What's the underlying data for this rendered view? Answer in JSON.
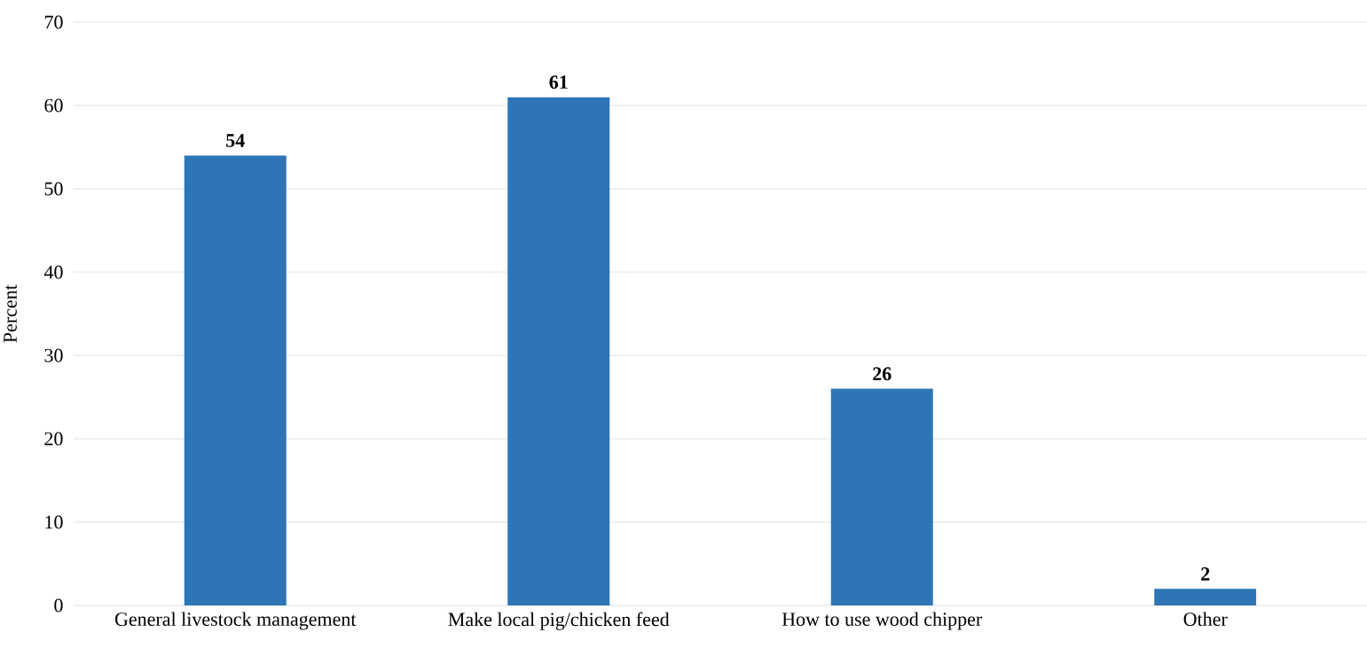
{
  "chart_data": {
    "type": "bar",
    "ylabel": "Percent",
    "categories": [
      "General livestock management",
      "Make local pig/chicken feed",
      "How to use wood chipper",
      "Other"
    ],
    "values": [
      54,
      61,
      26,
      2
    ],
    "color": "#2e75b6",
    "ylim": [
      0,
      70
    ],
    "yticks": [
      0,
      10,
      20,
      30,
      40,
      50,
      60,
      70
    ],
    "grid": "y",
    "data_labels": true
  }
}
